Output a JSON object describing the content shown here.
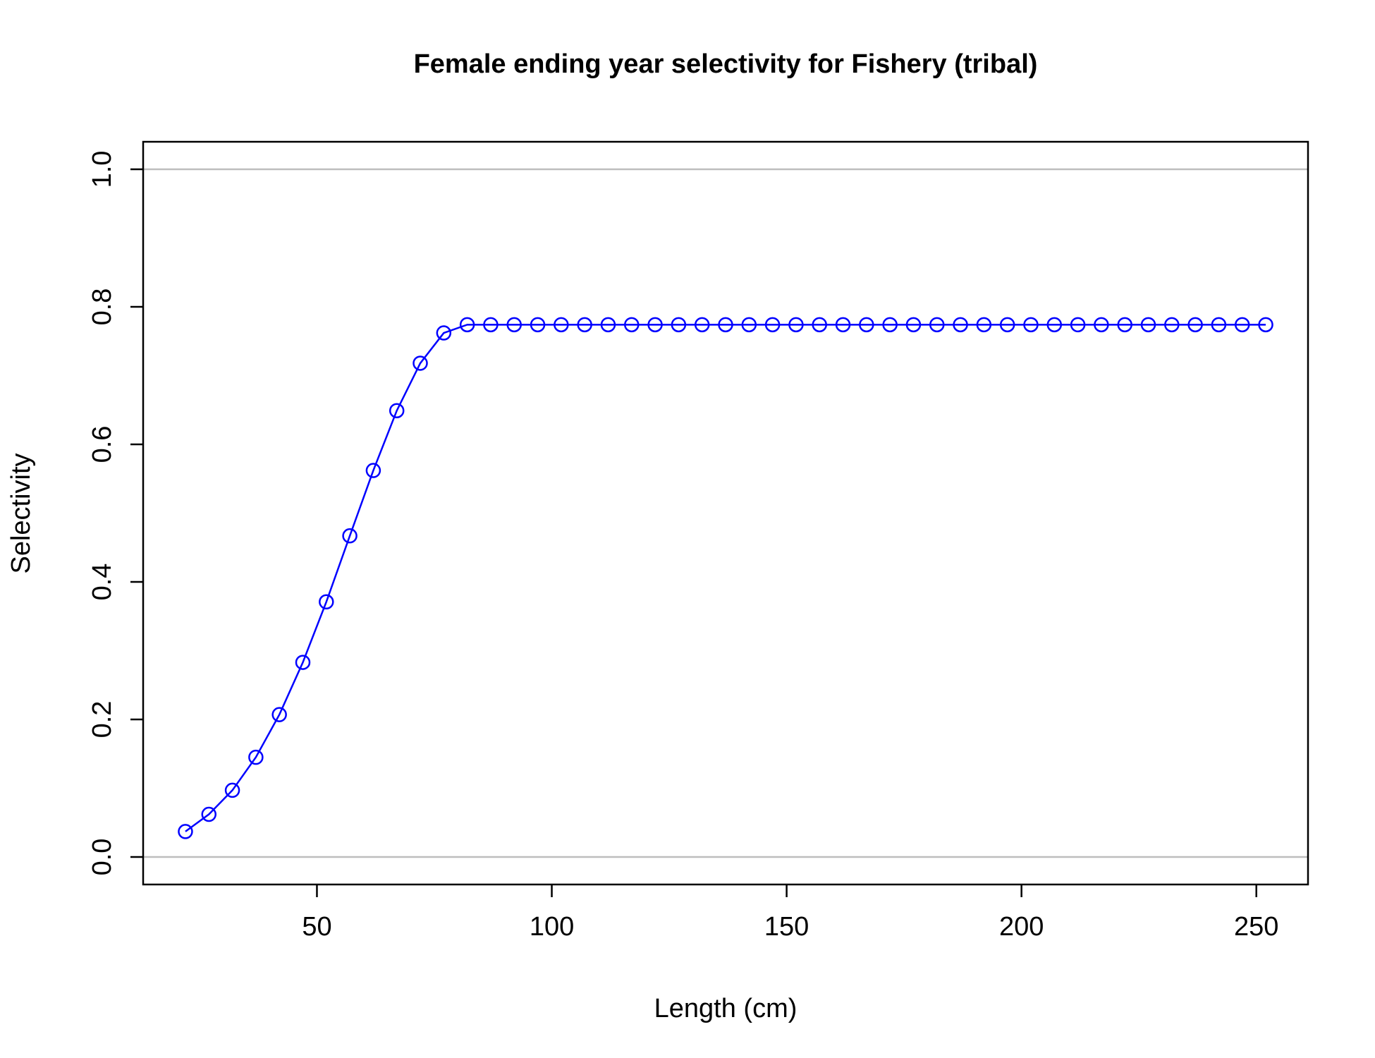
{
  "chart_data": {
    "type": "line",
    "title": "Female ending year selectivity for Fishery (tribal)",
    "xlabel": "Length (cm)",
    "ylabel": "Selectivity",
    "xlim": [
      13,
      261
    ],
    "ylim": [
      -0.04,
      1.04
    ],
    "xticks": [
      50,
      100,
      150,
      200,
      250
    ],
    "xtick_labels": [
      "50",
      "100",
      "150",
      "200",
      "250"
    ],
    "yticks": [
      0.0,
      0.2,
      0.4,
      0.6,
      0.8,
      1.0
    ],
    "ytick_labels": [
      "0.0",
      "0.2",
      "0.4",
      "0.6",
      "0.8",
      "1.0"
    ],
    "reference_lines": [
      0,
      1
    ],
    "grid": false,
    "colors": {
      "series": "#0000ff",
      "reference": "#bebebe",
      "axes": "#000000"
    },
    "series": [
      {
        "marker": "open-circle",
        "x": [
          22,
          27,
          32,
          37,
          42,
          47,
          52,
          57,
          62,
          67,
          72,
          77,
          82,
          87,
          92,
          97,
          102,
          107,
          112,
          117,
          122,
          127,
          132,
          137,
          142,
          147,
          152,
          157,
          162,
          167,
          172,
          177,
          182,
          187,
          192,
          197,
          202,
          207,
          212,
          217,
          222,
          227,
          232,
          237,
          242,
          247,
          252
        ],
        "y": [
          0.037,
          0.062,
          0.097,
          0.145,
          0.207,
          0.283,
          0.371,
          0.467,
          0.562,
          0.649,
          0.718,
          0.762,
          0.774,
          0.774,
          0.774,
          0.774,
          0.774,
          0.774,
          0.774,
          0.774,
          0.774,
          0.774,
          0.774,
          0.774,
          0.774,
          0.774,
          0.774,
          0.774,
          0.774,
          0.774,
          0.774,
          0.774,
          0.774,
          0.774,
          0.774,
          0.774,
          0.774,
          0.774,
          0.774,
          0.774,
          0.774,
          0.774,
          0.774,
          0.774,
          0.774,
          0.774,
          0.774
        ]
      }
    ]
  }
}
